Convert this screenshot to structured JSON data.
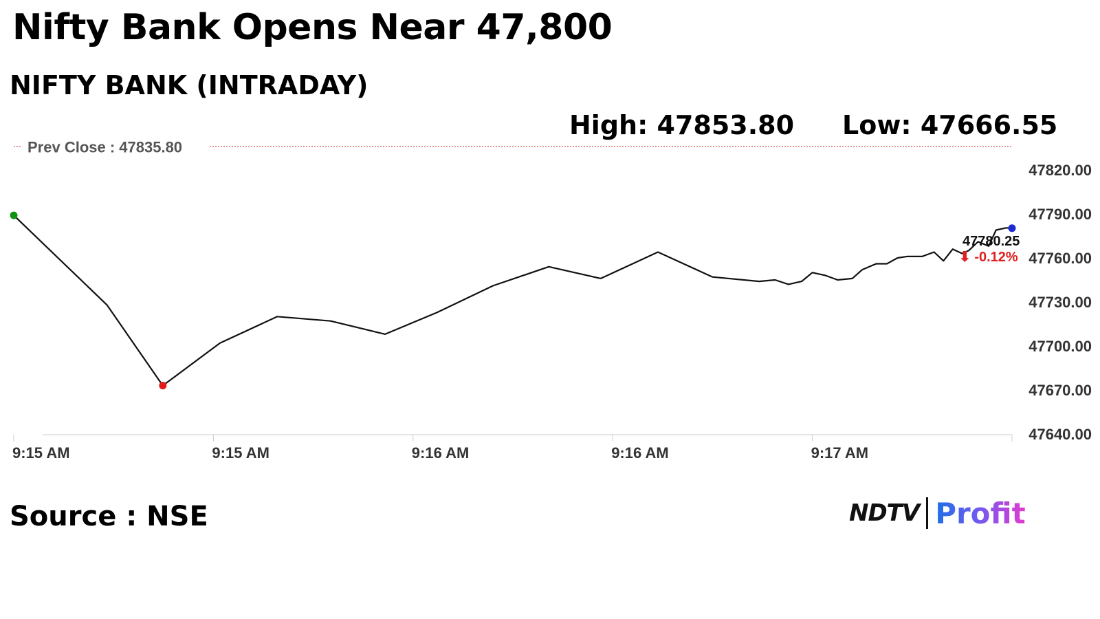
{
  "headline": "Nifty Bank Opens Near 47,800",
  "subhead": "NIFTY BANK (INTRADAY)",
  "stats": {
    "high": "High: 47853.80",
    "low": "Low: 47666.55"
  },
  "source": "Source : NSE",
  "brand": {
    "left": "NDTV",
    "right": "Profit"
  },
  "chart_data": {
    "type": "line",
    "title": "",
    "xlabel": "",
    "ylabel": "",
    "ylim": [
      47640,
      47835.8
    ],
    "y_ticks": [
      "47820.00",
      "47790.00",
      "47760.00",
      "47730.00",
      "47700.00",
      "47670.00",
      "47640.00"
    ],
    "x_tick_labels": [
      "9:15 AM",
      "9:15 AM",
      "9:16 AM",
      "9:16 AM",
      "9:17 AM"
    ],
    "x_range_seconds": [
      0,
      150
    ],
    "x_tick_seconds": [
      0,
      30,
      60,
      90,
      120
    ],
    "prev_close": {
      "label": "Prev Close : 47835.80",
      "value": 47835.8,
      "color": "#d63b3b"
    },
    "last_value": {
      "label": "47780.25",
      "change": "⬇ -0.12%",
      "change_color": "#e02020"
    },
    "marker_colors": {
      "start": "#119111",
      "low": "#e41b1b",
      "last": "#1d2bd1"
    },
    "series": [
      {
        "x": [
          0,
          14,
          22.4,
          31,
          39.6,
          47.6,
          55.8,
          63.7,
          72,
          80.4,
          88.2,
          96.8,
          105,
          112,
          114.4,
          116.4,
          118.4,
          120,
          122,
          123.8,
          126,
          127.5,
          129.6,
          131.2,
          132.8,
          134.2,
          136.5,
          138.3,
          139.7,
          141.1,
          142.5,
          143.5,
          144.9,
          146.5,
          147.6,
          149.1,
          150
        ],
        "y": [
          47789,
          47728,
          47673,
          47702,
          47720,
          47717,
          47708,
          47723,
          47741,
          47754,
          47746,
          47764,
          47747,
          47744,
          47745,
          47742,
          47744,
          47750,
          47748,
          47745,
          47746,
          47752,
          47756,
          47756,
          47760,
          47761,
          47761,
          47764,
          47758,
          47766,
          47763,
          47765,
          47771,
          47768,
          47779,
          47780.5,
          47780.25
        ]
      }
    ],
    "line_color": "#111111",
    "grid": false,
    "legend": "none"
  }
}
